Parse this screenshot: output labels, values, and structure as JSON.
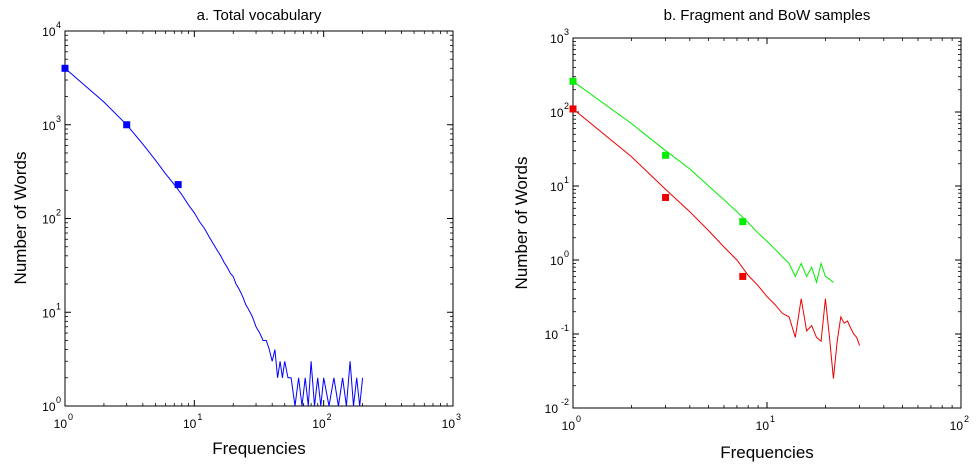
{
  "chart_data": [
    {
      "type": "line",
      "title": "a. Total vocabulary",
      "xlabel": "Frequencies",
      "ylabel": "Number of Words",
      "xscale": "log",
      "yscale": "log",
      "xlim": [
        1,
        1000
      ],
      "ylim": [
        1,
        10000
      ],
      "grid": false,
      "xticks": [
        {
          "base": "10",
          "exp": "0"
        },
        {
          "base": "10",
          "exp": "1"
        },
        {
          "base": "10",
          "exp": "2"
        },
        {
          "base": "10",
          "exp": "3"
        }
      ],
      "yticks": [
        {
          "base": "10",
          "exp": "0"
        },
        {
          "base": "10",
          "exp": "1"
        },
        {
          "base": "10",
          "exp": "2"
        },
        {
          "base": "10",
          "exp": "3"
        },
        {
          "base": "10",
          "exp": "4"
        }
      ],
      "series": [
        {
          "kind": "line",
          "color": "#0000ff",
          "x": [
            1,
            2,
            3,
            4,
            5,
            6,
            7,
            8,
            9,
            10,
            11,
            12,
            13,
            14,
            15,
            16,
            17,
            18,
            19,
            20,
            21,
            22,
            23,
            24,
            25,
            26,
            27,
            28,
            29,
            30,
            32,
            34,
            36,
            38,
            40,
            42,
            44,
            46,
            48,
            50,
            53,
            56,
            60,
            64,
            68,
            72,
            76,
            80,
            85,
            90,
            95,
            100,
            110,
            120,
            130,
            140,
            150,
            160,
            170,
            180,
            190,
            200
          ],
          "y": [
            4000,
            1750,
            1000,
            620,
            420,
            300,
            230,
            180,
            140,
            115,
            92,
            78,
            64,
            54,
            46,
            40,
            34,
            30,
            26,
            24,
            20,
            18,
            16,
            14,
            12,
            11,
            10,
            9,
            8,
            7,
            6,
            5,
            5,
            4,
            3,
            4,
            2,
            3,
            2,
            3,
            2,
            2,
            1,
            2,
            1,
            2,
            1,
            3,
            1,
            2,
            1,
            2,
            1,
            2,
            1,
            2,
            1,
            3,
            1,
            2,
            1,
            2
          ]
        },
        {
          "kind": "markers",
          "color": "#0000ff",
          "x": [
            1,
            3,
            7.5
          ],
          "y": [
            4000,
            1000,
            230
          ]
        }
      ]
    },
    {
      "type": "line",
      "title": "b. Fragment and BoW samples",
      "xlabel": "Frequencies",
      "ylabel": "Number of Words",
      "xscale": "log",
      "yscale": "log",
      "xlim": [
        1,
        100
      ],
      "ylim": [
        0.01,
        1000
      ],
      "grid": false,
      "xticks": [
        {
          "base": "10",
          "exp": "0"
        },
        {
          "base": "10",
          "exp": "1"
        },
        {
          "base": "10",
          "exp": "2"
        }
      ],
      "yticks": [
        {
          "base": "10",
          "exp": "-2"
        },
        {
          "base": "10",
          "exp": "-1"
        },
        {
          "base": "10",
          "exp": "0"
        },
        {
          "base": "10",
          "exp": "1"
        },
        {
          "base": "10",
          "exp": "2"
        },
        {
          "base": "10",
          "exp": "3"
        }
      ],
      "series": [
        {
          "kind": "line",
          "color": "#00ee00",
          "x": [
            1,
            2,
            3,
            4,
            5,
            6,
            7,
            8,
            9,
            10,
            11,
            12,
            13,
            14,
            15,
            16,
            17,
            18,
            19,
            20,
            21,
            22
          ],
          "y": [
            260,
            70,
            30,
            17,
            10,
            6.5,
            4.5,
            3.2,
            2.3,
            1.8,
            1.4,
            1.1,
            0.9,
            0.6,
            0.9,
            0.6,
            0.8,
            0.5,
            0.9,
            0.6,
            0.55,
            0.5
          ]
        },
        {
          "kind": "line",
          "color": "#ee0000",
          "x": [
            1,
            2,
            3,
            4,
            5,
            6,
            7,
            8,
            9,
            10,
            11,
            12,
            13,
            14,
            15,
            16,
            17,
            18,
            19,
            20,
            21,
            22,
            23,
            24,
            25,
            26,
            27,
            28,
            29,
            30
          ],
          "y": [
            110,
            25,
            9,
            4.5,
            2.5,
            1.5,
            1.0,
            0.62,
            0.45,
            0.32,
            0.25,
            0.19,
            0.17,
            0.09,
            0.3,
            0.11,
            0.13,
            0.09,
            0.08,
            0.3,
            0.09,
            0.025,
            0.08,
            0.17,
            0.14,
            0.15,
            0.12,
            0.1,
            0.09,
            0.07
          ]
        },
        {
          "kind": "markers",
          "color": "#00ee00",
          "x": [
            1,
            3,
            7.5
          ],
          "y": [
            260,
            26,
            3.3
          ]
        },
        {
          "kind": "markers",
          "color": "#ee0000",
          "x": [
            1,
            3,
            7.5
          ],
          "y": [
            110,
            7,
            0.6
          ]
        }
      ]
    }
  ]
}
